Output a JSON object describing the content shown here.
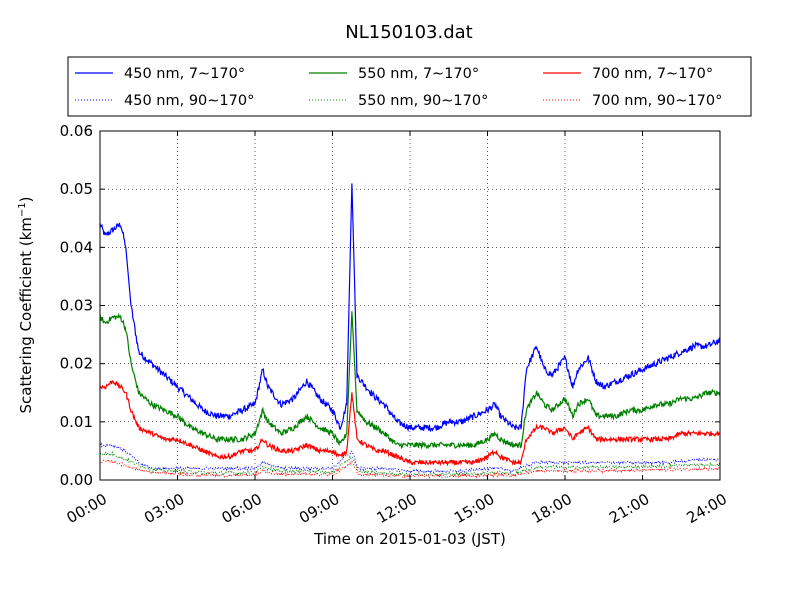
{
  "chart_data": {
    "type": "line",
    "title": "NL150103.dat",
    "xlabel": "Time on 2015-01-03 (JST)",
    "ylabel_main": "Scattering Coefficient (km",
    "ylabel_sup": "−1",
    "ylabel_end": ")",
    "xlim_hours": [
      0,
      24
    ],
    "ylim": [
      0,
      0.06
    ],
    "x_ticks": [
      "00:00",
      "03:00",
      "06:00",
      "09:00",
      "12:00",
      "15:00",
      "18:00",
      "21:00",
      "24:00"
    ],
    "y_ticks": [
      "0.00",
      "0.01",
      "0.02",
      "0.03",
      "0.04",
      "0.05",
      "0.06"
    ],
    "grid": true,
    "legend_position": "top, above plot, 3 columns",
    "series": [
      {
        "name": "450 nm, 7∼170°",
        "color": "#0000ff",
        "style": "solid",
        "x": [
          0,
          0.2,
          0.5,
          0.8,
          1.0,
          1.2,
          1.5,
          2.0,
          2.5,
          3.0,
          3.5,
          4.0,
          4.5,
          5.0,
          5.5,
          6.0,
          6.3,
          6.5,
          7.0,
          7.5,
          8.0,
          8.5,
          9.0,
          9.3,
          9.55,
          9.75,
          9.95,
          10.3,
          10.7,
          11.0,
          11.5,
          12.0,
          12.5,
          13.0,
          13.5,
          14.0,
          14.5,
          15.0,
          15.3,
          15.5,
          16.0,
          16.3,
          16.5,
          16.9,
          17.2,
          17.5,
          18.0,
          18.3,
          18.5,
          18.9,
          19.2,
          19.5,
          20.0,
          20.5,
          21.0,
          21.5,
          22.0,
          22.5,
          23.0,
          23.5,
          24.0
        ],
        "y": [
          0.044,
          0.042,
          0.043,
          0.044,
          0.04,
          0.03,
          0.022,
          0.02,
          0.018,
          0.016,
          0.014,
          0.012,
          0.011,
          0.011,
          0.012,
          0.013,
          0.019,
          0.016,
          0.013,
          0.014,
          0.017,
          0.014,
          0.012,
          0.009,
          0.013,
          0.051,
          0.018,
          0.016,
          0.014,
          0.013,
          0.01,
          0.009,
          0.009,
          0.009,
          0.01,
          0.01,
          0.011,
          0.012,
          0.013,
          0.011,
          0.009,
          0.009,
          0.019,
          0.023,
          0.019,
          0.018,
          0.021,
          0.016,
          0.019,
          0.021,
          0.017,
          0.016,
          0.017,
          0.018,
          0.019,
          0.02,
          0.021,
          0.022,
          0.023,
          0.023,
          0.024
        ]
      },
      {
        "name": "550 nm, 7∼170°",
        "color": "#008000",
        "style": "solid",
        "x": [
          0,
          0.2,
          0.5,
          0.8,
          1.0,
          1.2,
          1.5,
          2.0,
          2.5,
          3.0,
          3.5,
          4.0,
          4.5,
          5.0,
          5.5,
          6.0,
          6.3,
          6.5,
          7.0,
          7.5,
          8.0,
          8.5,
          9.0,
          9.3,
          9.55,
          9.75,
          9.95,
          10.3,
          10.7,
          11.0,
          11.5,
          12.0,
          12.5,
          13.0,
          13.5,
          14.0,
          14.5,
          15.0,
          15.3,
          15.5,
          16.0,
          16.3,
          16.5,
          16.9,
          17.2,
          17.5,
          18.0,
          18.3,
          18.5,
          18.9,
          19.2,
          19.5,
          20.0,
          20.5,
          21.0,
          21.5,
          22.0,
          22.5,
          23.0,
          23.5,
          24.0
        ],
        "y": [
          0.028,
          0.027,
          0.028,
          0.028,
          0.026,
          0.02,
          0.015,
          0.013,
          0.012,
          0.011,
          0.009,
          0.008,
          0.007,
          0.007,
          0.007,
          0.008,
          0.012,
          0.01,
          0.008,
          0.009,
          0.011,
          0.009,
          0.008,
          0.006,
          0.008,
          0.029,
          0.012,
          0.01,
          0.009,
          0.008,
          0.006,
          0.006,
          0.006,
          0.006,
          0.006,
          0.006,
          0.006,
          0.007,
          0.008,
          0.007,
          0.006,
          0.006,
          0.012,
          0.015,
          0.013,
          0.012,
          0.014,
          0.011,
          0.013,
          0.014,
          0.011,
          0.011,
          0.011,
          0.012,
          0.012,
          0.013,
          0.013,
          0.014,
          0.014,
          0.015,
          0.015
        ]
      },
      {
        "name": "700 nm, 7∼170°",
        "color": "#ff0000",
        "style": "solid",
        "x": [
          0,
          0.2,
          0.5,
          0.8,
          1.0,
          1.2,
          1.5,
          2.0,
          2.5,
          3.0,
          3.5,
          4.0,
          4.5,
          5.0,
          5.5,
          6.0,
          6.3,
          6.5,
          7.0,
          7.5,
          8.0,
          8.5,
          9.0,
          9.3,
          9.55,
          9.75,
          9.95,
          10.3,
          10.7,
          11.0,
          11.5,
          12.0,
          12.5,
          13.0,
          13.5,
          14.0,
          14.5,
          15.0,
          15.3,
          15.5,
          16.0,
          16.3,
          16.5,
          16.9,
          17.2,
          17.5,
          18.0,
          18.3,
          18.5,
          18.9,
          19.2,
          19.5,
          20.0,
          20.5,
          21.0,
          21.5,
          22.0,
          22.5,
          23.0,
          23.5,
          24.0
        ],
        "y": [
          0.016,
          0.016,
          0.017,
          0.016,
          0.015,
          0.012,
          0.009,
          0.008,
          0.007,
          0.007,
          0.006,
          0.005,
          0.004,
          0.004,
          0.005,
          0.005,
          0.007,
          0.006,
          0.005,
          0.005,
          0.006,
          0.005,
          0.005,
          0.004,
          0.005,
          0.015,
          0.007,
          0.006,
          0.005,
          0.005,
          0.004,
          0.003,
          0.003,
          0.003,
          0.003,
          0.003,
          0.003,
          0.004,
          0.005,
          0.004,
          0.003,
          0.003,
          0.007,
          0.009,
          0.009,
          0.008,
          0.009,
          0.007,
          0.008,
          0.009,
          0.007,
          0.007,
          0.007,
          0.007,
          0.007,
          0.007,
          0.007,
          0.008,
          0.008,
          0.008,
          0.008
        ]
      },
      {
        "name": "450 nm, 90∼170°",
        "color": "#0000ff",
        "style": "dotted",
        "x": [
          0,
          0.5,
          1.0,
          1.5,
          2.0,
          3.0,
          4.0,
          5.0,
          6.0,
          6.3,
          7.0,
          8.0,
          9.0,
          9.75,
          10.0,
          11.0,
          12.0,
          13.0,
          14.0,
          15.0,
          15.5,
          16.0,
          16.5,
          17.0,
          18.0,
          19.0,
          20.0,
          21.0,
          22.0,
          23.0,
          24.0
        ],
        "y": [
          0.006,
          0.006,
          0.005,
          0.003,
          0.002,
          0.002,
          0.002,
          0.002,
          0.002,
          0.003,
          0.002,
          0.002,
          0.002,
          0.005,
          0.002,
          0.002,
          0.0015,
          0.0015,
          0.0015,
          0.002,
          0.002,
          0.0015,
          0.0025,
          0.003,
          0.003,
          0.003,
          0.003,
          0.003,
          0.003,
          0.0035,
          0.0035
        ]
      },
      {
        "name": "550 nm, 90∼170°",
        "color": "#008000",
        "style": "dotted",
        "x": [
          0,
          0.5,
          1.0,
          1.5,
          2.0,
          3.0,
          4.0,
          5.0,
          6.0,
          6.3,
          7.0,
          8.0,
          9.0,
          9.75,
          10.0,
          11.0,
          12.0,
          13.0,
          14.0,
          15.0,
          15.5,
          16.0,
          16.5,
          17.0,
          18.0,
          19.0,
          20.0,
          21.0,
          22.0,
          23.0,
          24.0
        ],
        "y": [
          0.0045,
          0.0045,
          0.0035,
          0.0025,
          0.0018,
          0.0015,
          0.0013,
          0.0012,
          0.0013,
          0.0022,
          0.0015,
          0.0016,
          0.0013,
          0.004,
          0.0015,
          0.0012,
          0.001,
          0.001,
          0.001,
          0.0012,
          0.0013,
          0.001,
          0.0018,
          0.0022,
          0.0022,
          0.0022,
          0.0022,
          0.0023,
          0.0024,
          0.0026,
          0.0026
        ]
      },
      {
        "name": "700 nm, 90∼170°",
        "color": "#ff0000",
        "style": "dotted",
        "x": [
          0,
          0.5,
          1.0,
          1.5,
          2.0,
          3.0,
          4.0,
          5.0,
          6.0,
          6.3,
          7.0,
          8.0,
          9.0,
          9.75,
          10.0,
          11.0,
          12.0,
          13.0,
          14.0,
          15.0,
          15.5,
          16.0,
          16.5,
          17.0,
          18.0,
          19.0,
          20.0,
          21.0,
          22.0,
          23.0,
          24.0
        ],
        "y": [
          0.0032,
          0.0032,
          0.0025,
          0.0018,
          0.0013,
          0.001,
          0.0009,
          0.0008,
          0.0009,
          0.0015,
          0.001,
          0.0011,
          0.0009,
          0.003,
          0.001,
          0.0008,
          0.0007,
          0.0007,
          0.0007,
          0.0008,
          0.0009,
          0.0007,
          0.0013,
          0.0016,
          0.0016,
          0.0016,
          0.0016,
          0.0017,
          0.0018,
          0.0019,
          0.0019
        ]
      }
    ]
  }
}
